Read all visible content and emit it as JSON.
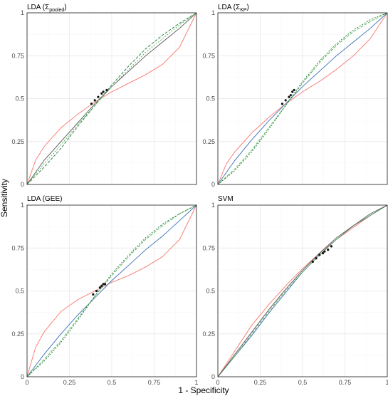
{
  "figure": {
    "xlabel": "1 - Specificity",
    "ylabel": "Sensitivity",
    "tick_labels": [
      "0",
      "0.25",
      "0.5",
      "0.75",
      "1"
    ],
    "palette": {
      "red": "#f8766d",
      "green": "#4daf4a",
      "darkgreen": "#1b7837",
      "blue": "#3b6fb6",
      "gray": "#555555",
      "points": "#111111",
      "frame": "#333333"
    }
  },
  "chart_data": [
    {
      "type": "line",
      "title": "LDA (Σ",
      "title_sub": "pooled",
      "title_end": ")",
      "xlim": [
        0,
        1
      ],
      "ylim": [
        0,
        1
      ],
      "grid": true,
      "legend": "none",
      "series": [
        {
          "color": "red",
          "x": [
            0,
            0.05,
            0.1,
            0.2,
            0.3,
            0.4,
            0.5,
            0.6,
            0.7,
            0.8,
            0.9,
            1
          ],
          "y": [
            0,
            0.14,
            0.22,
            0.33,
            0.41,
            0.48,
            0.54,
            0.59,
            0.64,
            0.7,
            0.8,
            1
          ]
        },
        {
          "color": "gray",
          "x": [
            0,
            0.1,
            0.2,
            0.3,
            0.4,
            0.5,
            0.6,
            0.7,
            0.8,
            0.9,
            1
          ],
          "y": [
            0,
            0.14,
            0.25,
            0.36,
            0.47,
            0.57,
            0.66,
            0.75,
            0.83,
            0.91,
            1
          ]
        },
        {
          "color": "darkgreen",
          "dash": "4,2",
          "x": [
            0,
            0.1,
            0.2,
            0.3,
            0.4,
            0.5,
            0.6,
            0.7,
            0.8,
            0.9,
            1
          ],
          "y": [
            0,
            0.1,
            0.21,
            0.34,
            0.46,
            0.58,
            0.69,
            0.79,
            0.87,
            0.94,
            1
          ]
        },
        {
          "color": "green",
          "dash": "2,2",
          "x": [
            0,
            0.1,
            0.2,
            0.3,
            0.4,
            0.5,
            0.6,
            0.7,
            0.8,
            0.9,
            1
          ],
          "y": [
            0,
            0.12,
            0.23,
            0.35,
            0.46,
            0.57,
            0.67,
            0.77,
            0.85,
            0.93,
            1
          ]
        }
      ],
      "points": {
        "x": [
          0.38,
          0.4,
          0.42,
          0.44,
          0.45,
          0.47
        ],
        "y": [
          0.47,
          0.49,
          0.51,
          0.53,
          0.54,
          0.55
        ]
      }
    },
    {
      "type": "line",
      "title": "LDA (Σ",
      "title_sub": "KP",
      "title_end": ")",
      "xlim": [
        0,
        1
      ],
      "ylim": [
        0,
        1
      ],
      "grid": true,
      "legend": "none",
      "series": [
        {
          "color": "red",
          "x": [
            0,
            0.05,
            0.1,
            0.2,
            0.3,
            0.4,
            0.5,
            0.6,
            0.7,
            0.8,
            0.9,
            1
          ],
          "y": [
            0,
            0.12,
            0.19,
            0.3,
            0.39,
            0.47,
            0.54,
            0.6,
            0.67,
            0.75,
            0.85,
            1
          ]
        },
        {
          "color": "blue",
          "x": [
            0,
            0.1,
            0.2,
            0.3,
            0.4,
            0.5,
            0.6,
            0.7,
            0.8,
            0.9,
            1
          ],
          "y": [
            0,
            0.14,
            0.26,
            0.37,
            0.47,
            0.57,
            0.66,
            0.75,
            0.83,
            0.91,
            1
          ]
        },
        {
          "color": "green",
          "dash": "4,2",
          "x": [
            0,
            0.1,
            0.2,
            0.3,
            0.4,
            0.5,
            0.6,
            0.7,
            0.8,
            0.9,
            1
          ],
          "y": [
            0,
            0.09,
            0.2,
            0.33,
            0.46,
            0.59,
            0.71,
            0.81,
            0.89,
            0.95,
            1
          ]
        },
        {
          "color": "darkgreen",
          "dash": "2,2",
          "x": [
            0,
            0.1,
            0.2,
            0.3,
            0.4,
            0.5,
            0.6,
            0.7,
            0.8,
            0.9,
            1
          ],
          "y": [
            0,
            0.08,
            0.19,
            0.32,
            0.46,
            0.6,
            0.72,
            0.82,
            0.9,
            0.96,
            1
          ]
        }
      ],
      "points": {
        "x": [
          0.38,
          0.4,
          0.42,
          0.43,
          0.44,
          0.45
        ],
        "y": [
          0.47,
          0.49,
          0.51,
          0.52,
          0.54,
          0.55
        ]
      }
    },
    {
      "type": "line",
      "title": "LDA (GEE)",
      "title_sub": "",
      "title_end": "",
      "xlim": [
        0,
        1
      ],
      "ylim": [
        0,
        1
      ],
      "grid": true,
      "legend": "none",
      "series": [
        {
          "color": "red",
          "x": [
            0,
            0.05,
            0.1,
            0.2,
            0.3,
            0.4,
            0.5,
            0.6,
            0.7,
            0.8,
            0.9,
            1
          ],
          "y": [
            0,
            0.17,
            0.26,
            0.38,
            0.45,
            0.5,
            0.55,
            0.59,
            0.64,
            0.7,
            0.8,
            1
          ]
        },
        {
          "color": "blue",
          "x": [
            0,
            0.1,
            0.2,
            0.3,
            0.4,
            0.5,
            0.6,
            0.7,
            0.8,
            0.9,
            1
          ],
          "y": [
            0,
            0.13,
            0.25,
            0.36,
            0.46,
            0.56,
            0.65,
            0.74,
            0.82,
            0.91,
            1
          ]
        },
        {
          "color": "green",
          "dash": "4,2",
          "x": [
            0,
            0.1,
            0.2,
            0.3,
            0.4,
            0.5,
            0.6,
            0.7,
            0.8,
            0.9,
            1
          ],
          "y": [
            0,
            0.1,
            0.21,
            0.34,
            0.47,
            0.59,
            0.7,
            0.8,
            0.88,
            0.95,
            1
          ]
        },
        {
          "color": "darkgreen",
          "dash": "2,2",
          "x": [
            0,
            0.1,
            0.2,
            0.3,
            0.4,
            0.5,
            0.6,
            0.7,
            0.8,
            0.9,
            1
          ],
          "y": [
            0,
            0.09,
            0.2,
            0.33,
            0.47,
            0.6,
            0.71,
            0.81,
            0.89,
            0.95,
            1
          ]
        }
      ],
      "points": {
        "x": [
          0.39,
          0.41,
          0.43,
          0.44,
          0.45,
          0.46
        ],
        "y": [
          0.48,
          0.5,
          0.52,
          0.53,
          0.54,
          0.54
        ]
      }
    },
    {
      "type": "line",
      "title": "SVM",
      "title_sub": "",
      "title_end": "",
      "xlim": [
        0,
        1
      ],
      "ylim": [
        0,
        1
      ],
      "grid": true,
      "legend": "none",
      "series": [
        {
          "color": "red",
          "x": [
            0,
            0.1,
            0.2,
            0.3,
            0.4,
            0.5,
            0.6,
            0.7,
            0.8,
            0.9,
            1
          ],
          "y": [
            0,
            0.15,
            0.3,
            0.42,
            0.53,
            0.63,
            0.72,
            0.8,
            0.87,
            0.94,
            1
          ]
        },
        {
          "color": "blue",
          "x": [
            0,
            0.1,
            0.2,
            0.3,
            0.4,
            0.5,
            0.6,
            0.7,
            0.8,
            0.9,
            1
          ],
          "y": [
            0,
            0.12,
            0.24,
            0.37,
            0.49,
            0.61,
            0.71,
            0.8,
            0.88,
            0.94,
            1
          ]
        },
        {
          "color": "green",
          "dash": "4,2",
          "x": [
            0,
            0.1,
            0.2,
            0.3,
            0.4,
            0.5,
            0.6,
            0.7,
            0.8,
            0.9,
            1
          ],
          "y": [
            0,
            0.12,
            0.25,
            0.38,
            0.5,
            0.61,
            0.71,
            0.8,
            0.88,
            0.94,
            1
          ]
        },
        {
          "color": "gray",
          "x": [
            0,
            0.1,
            0.2,
            0.3,
            0.4,
            0.5,
            0.6,
            0.7,
            0.8,
            0.9,
            1
          ],
          "y": [
            0,
            0.13,
            0.26,
            0.39,
            0.51,
            0.62,
            0.72,
            0.81,
            0.88,
            0.95,
            1
          ]
        }
      ],
      "points": {
        "x": [
          0.56,
          0.58,
          0.6,
          0.62,
          0.63,
          0.65,
          0.67
        ],
        "y": [
          0.67,
          0.69,
          0.71,
          0.72,
          0.73,
          0.74,
          0.76
        ]
      }
    }
  ]
}
